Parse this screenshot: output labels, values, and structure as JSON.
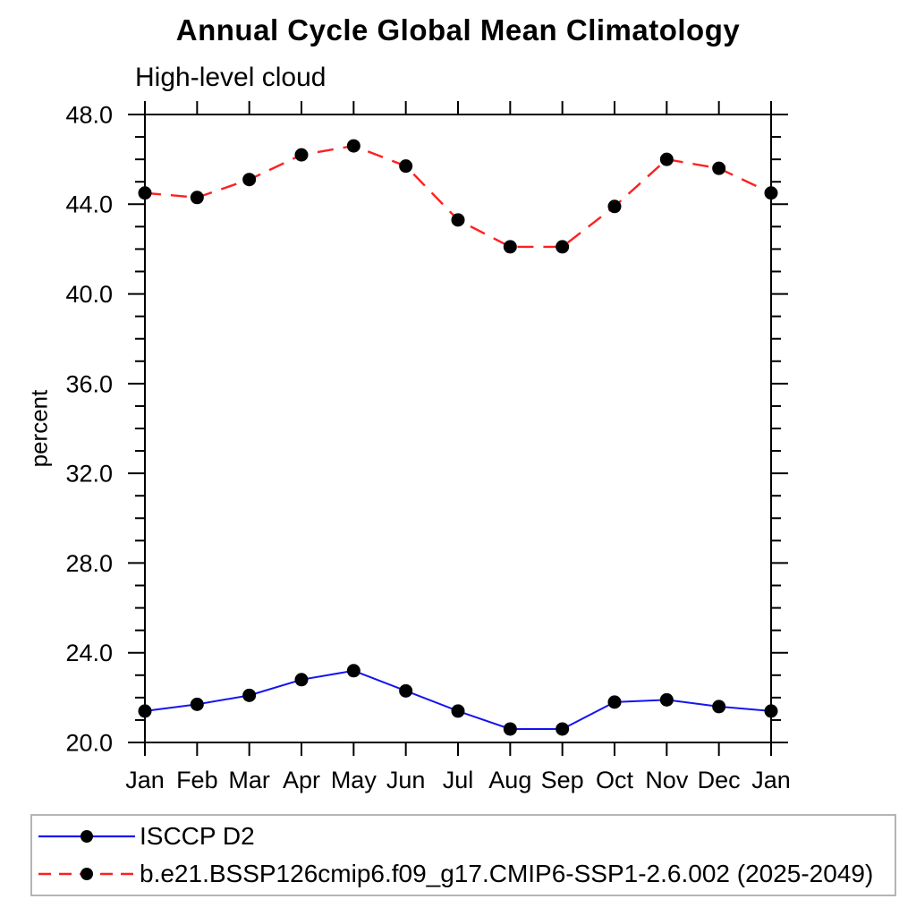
{
  "chart_data": {
    "type": "line",
    "title": "Annual Cycle Global Mean Climatology",
    "subtitle": "High-level cloud",
    "ylabel": "percent",
    "xlabel": "",
    "categories": [
      "Jan",
      "Feb",
      "Mar",
      "Apr",
      "May",
      "Jun",
      "Jul",
      "Aug",
      "Sep",
      "Oct",
      "Nov",
      "Dec",
      "Jan"
    ],
    "ylim": [
      20.0,
      48.0
    ],
    "y_major_step": 4.0,
    "y_minor_step": 1.0,
    "y_tick_labels": [
      "20.0",
      "24.0",
      "28.0",
      "32.0",
      "36.0",
      "40.0",
      "44.0",
      "48.0"
    ],
    "grid": false,
    "legend_position": "bottom",
    "series": [
      {
        "name": "ISCCP D2",
        "color": "#1414f0",
        "line_style": "solid",
        "marker": "filled-circle",
        "marker_color": "#000000",
        "values": [
          21.4,
          21.7,
          22.1,
          22.8,
          23.2,
          22.3,
          21.4,
          20.6,
          20.6,
          21.8,
          21.9,
          21.6,
          21.4
        ]
      },
      {
        "name": "b.e21.BSSP126cmip6.f09_g17.CMIP6-SSP1-2.6.002 (2025-2049)",
        "color": "#ff1f1f",
        "line_style": "dashed",
        "marker": "filled-circle",
        "marker_color": "#000000",
        "values": [
          44.5,
          44.3,
          45.1,
          46.2,
          46.6,
          45.7,
          43.3,
          42.1,
          42.1,
          43.9,
          46.0,
          45.6,
          44.5
        ]
      }
    ],
    "colors": {
      "axis": "#000000",
      "text": "#000000",
      "legend_border": "#b4b4b4",
      "background": "#ffffff"
    }
  }
}
